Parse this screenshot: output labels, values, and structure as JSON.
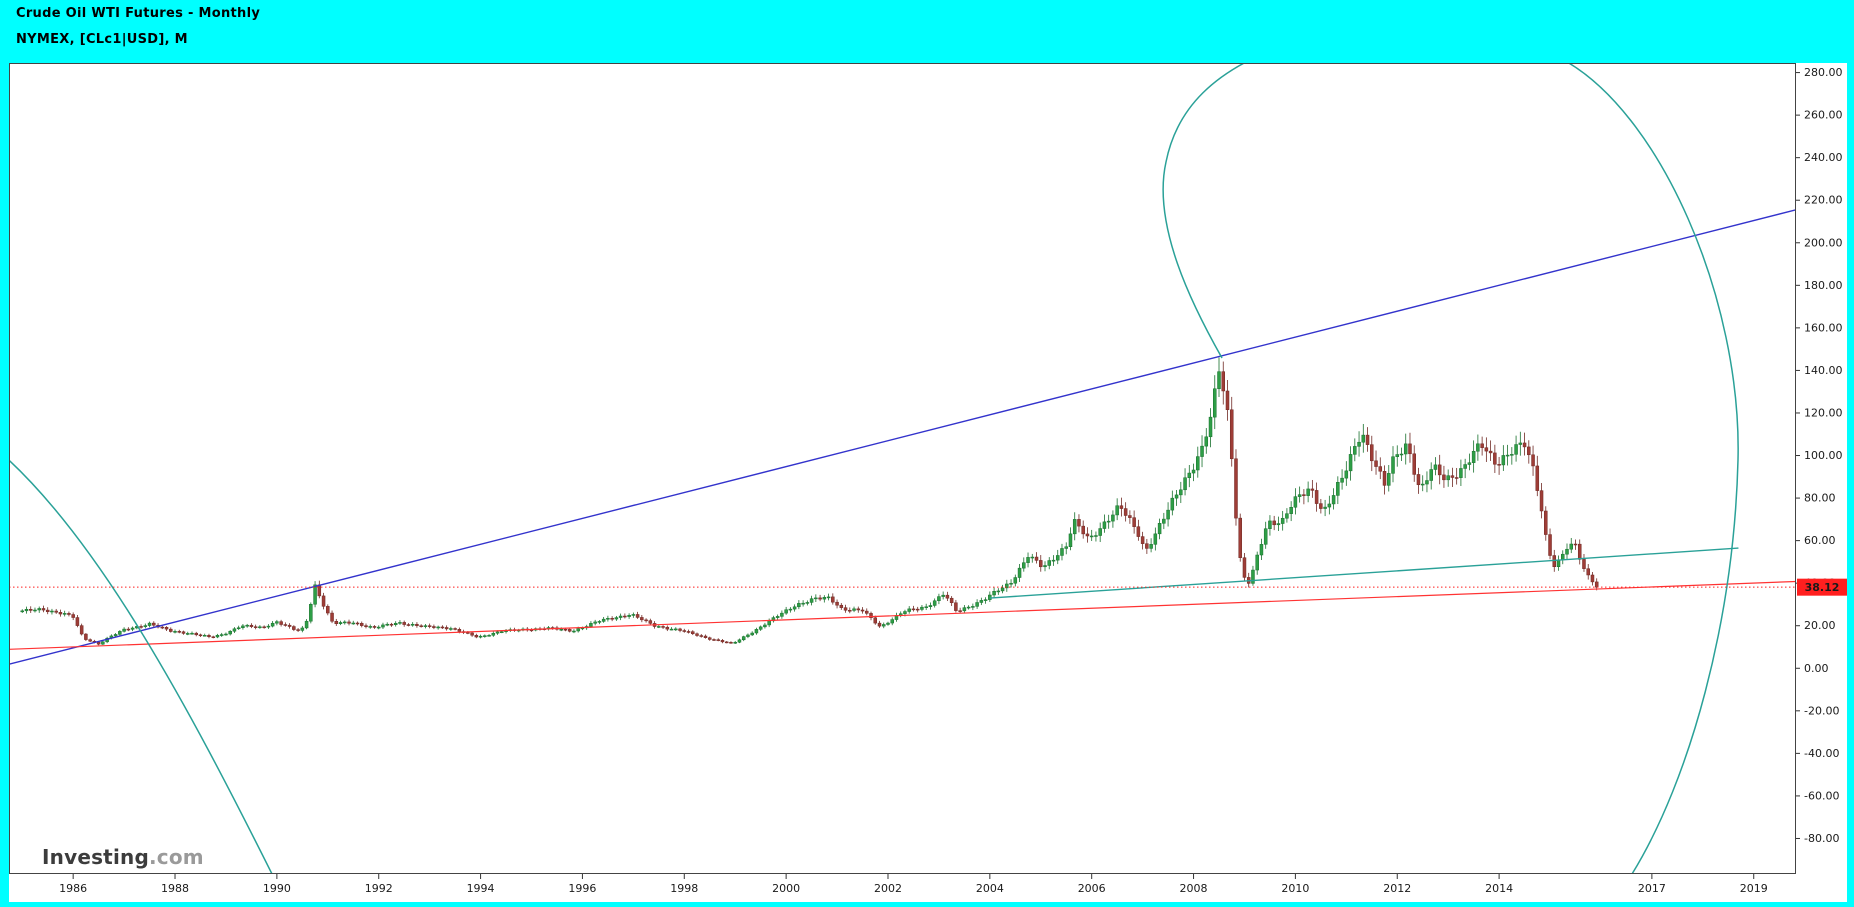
{
  "theme": {
    "frame_color": "#00ffff",
    "plot_bg": "#ffffff",
    "axis_text": "#1a1a1a",
    "plot_border": "#444444"
  },
  "header": {
    "title_line1": "Crude Oil WTI Futures - Monthly",
    "title_line2": "NYMEX, [CLc1|USD], M"
  },
  "watermark": {
    "brand": "Investing",
    "suffix": ".com"
  },
  "price_tag": {
    "value": "38.12",
    "color": "#ff1f1f"
  },
  "chart_data": {
    "type": "candlestick",
    "title": "Crude Oil WTI Futures - Monthly",
    "legend_position": "none",
    "grid": false,
    "x_axis": {
      "min_year": 1984.74,
      "max_year": 2019.83,
      "tick_years": [
        1986,
        1988,
        1990,
        1992,
        1994,
        1996,
        1998,
        2000,
        2002,
        2004,
        2006,
        2008,
        2010,
        2012,
        2014,
        2017,
        2019
      ]
    },
    "y_axis": {
      "min": -96.7,
      "max": 284.5,
      "tick_min": -80,
      "tick_max": 280,
      "tick_step": 20,
      "decimals": 2
    },
    "last_price": 38.12,
    "monthly_close_anchors": [
      [
        1985.0,
        27.0
      ],
      [
        1985.4,
        27.5
      ],
      [
        1985.8,
        26.0
      ],
      [
        1986.0,
        24.0
      ],
      [
        1986.2,
        14.0
      ],
      [
        1986.5,
        11.5
      ],
      [
        1986.7,
        14.5
      ],
      [
        1987.0,
        18.0
      ],
      [
        1987.5,
        21.0
      ],
      [
        1987.9,
        17.5
      ],
      [
        1988.3,
        16.5
      ],
      [
        1988.7,
        14.5
      ],
      [
        1988.95,
        16.0
      ],
      [
        1989.3,
        20.0
      ],
      [
        1989.7,
        19.0
      ],
      [
        1990.0,
        22.0
      ],
      [
        1990.4,
        17.5
      ],
      [
        1990.55,
        19.0
      ],
      [
        1990.75,
        39.0
      ],
      [
        1990.95,
        28.0
      ],
      [
        1991.1,
        21.0
      ],
      [
        1991.5,
        21.5
      ],
      [
        1991.9,
        19.0
      ],
      [
        1992.4,
        21.5
      ],
      [
        1992.9,
        19.5
      ],
      [
        1993.4,
        19.0
      ],
      [
        1993.95,
        14.5
      ],
      [
        1994.4,
        17.5
      ],
      [
        1994.8,
        18.0
      ],
      [
        1995.3,
        19.0
      ],
      [
        1995.8,
        17.5
      ],
      [
        1996.3,
        22.0
      ],
      [
        1996.95,
        25.5
      ],
      [
        1997.4,
        20.0
      ],
      [
        1997.9,
        18.0
      ],
      [
        1998.4,
        14.5
      ],
      [
        1998.95,
        11.5
      ],
      [
        1999.4,
        18.0
      ],
      [
        1999.9,
        25.5
      ],
      [
        2000.2,
        30.0
      ],
      [
        2000.55,
        32.5
      ],
      [
        2000.85,
        33.0
      ],
      [
        2001.1,
        28.0
      ],
      [
        2001.5,
        27.0
      ],
      [
        2001.85,
        19.5
      ],
      [
        2002.3,
        26.5
      ],
      [
        2002.75,
        29.0
      ],
      [
        2003.1,
        35.0
      ],
      [
        2003.35,
        26.5
      ],
      [
        2003.9,
        32.5
      ],
      [
        2004.4,
        40.0
      ],
      [
        2004.75,
        53.0
      ],
      [
        2005.05,
        47.0
      ],
      [
        2005.5,
        58.0
      ],
      [
        2005.65,
        69.0
      ],
      [
        2005.95,
        60.0
      ],
      [
        2006.3,
        70.0
      ],
      [
        2006.55,
        76.0
      ],
      [
        2006.95,
        62.0
      ],
      [
        2007.05,
        55.0
      ],
      [
        2007.5,
        74.0
      ],
      [
        2007.95,
        94.0
      ],
      [
        2008.15,
        102.0
      ],
      [
        2008.35,
        118.0
      ],
      [
        2008.5,
        140.0
      ],
      [
        2008.65,
        124.0
      ],
      [
        2008.75,
        100.0
      ],
      [
        2008.85,
        67.0
      ],
      [
        2008.95,
        44.0
      ],
      [
        2009.1,
        40.0
      ],
      [
        2009.45,
        68.0
      ],
      [
        2009.75,
        70.0
      ],
      [
        2009.95,
        78.0
      ],
      [
        2010.3,
        84.0
      ],
      [
        2010.55,
        74.0
      ],
      [
        2010.95,
        90.0
      ],
      [
        2011.3,
        112.0
      ],
      [
        2011.55,
        97.0
      ],
      [
        2011.75,
        86.0
      ],
      [
        2011.95,
        99.0
      ],
      [
        2012.2,
        106.0
      ],
      [
        2012.45,
        83.0
      ],
      [
        2012.7,
        94.0
      ],
      [
        2012.95,
        89.0
      ],
      [
        2013.3,
        94.0
      ],
      [
        2013.65,
        105.0
      ],
      [
        2013.95,
        97.0
      ],
      [
        2014.2,
        101.0
      ],
      [
        2014.5,
        105.0
      ],
      [
        2014.7,
        92.0
      ],
      [
        2014.85,
        73.0
      ],
      [
        2014.95,
        57.0
      ],
      [
        2015.1,
        47.0
      ],
      [
        2015.35,
        57.0
      ],
      [
        2015.5,
        58.0
      ],
      [
        2015.7,
        45.0
      ],
      [
        2015.85,
        41.0
      ],
      [
        2015.96,
        38.12
      ]
    ],
    "series_start_year": 1985.0,
    "series_months": 372,
    "trendlines": [
      {
        "name": "blue-long-term-resistance",
        "color": "#3333cc",
        "width": 1.4,
        "points": [
          [
            1984.74,
            1.9
          ],
          [
            2019.83,
            215.5
          ]
        ]
      },
      {
        "name": "red-long-term-support",
        "color": "#ff3333",
        "width": 1.2,
        "points": [
          [
            1984.74,
            8.9
          ],
          [
            2019.83,
            40.8
          ]
        ]
      },
      {
        "name": "teal-support-2004",
        "color": "#2aa198",
        "width": 1.4,
        "points": [
          [
            2004.0,
            33.0
          ],
          [
            2018.7,
            56.5
          ]
        ]
      }
    ],
    "hline": {
      "value": 38.12,
      "color": "#ff1f1f",
      "style": "dotted"
    },
    "spiral": {
      "color": "#2aa198",
      "width": 1.5,
      "paths": [
        "M 1222,358 C 1192,305 1152,225 1166,162 C 1176,112 1210,68 1300,40 C 1380,16 1480,18 1560,58 C 1660,110 1742,300 1738,460 C 1734,620 1690,780 1632,874",
        "M 0,452 C 100,540 190,710 272,874"
      ]
    },
    "candle_colors": {
      "up_fill": "#2e9e46",
      "up_stroke": "#17702c",
      "down_fill": "#9e3d37",
      "down_stroke": "#6f2823"
    }
  }
}
